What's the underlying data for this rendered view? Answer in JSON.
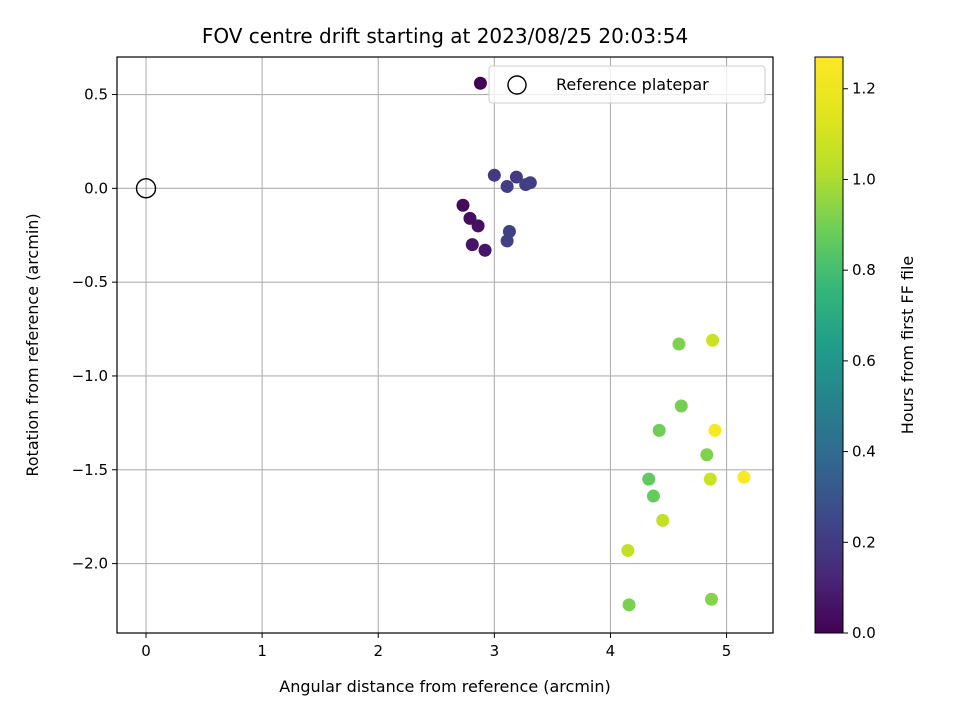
{
  "chart_data": {
    "type": "scatter",
    "title": "FOV centre drift starting at 2023/08/25 20:03:54",
    "xlabel": "Angular distance from reference (arcmin)",
    "ylabel": "Rotation from reference (arcmin)",
    "xlim": [
      -0.25,
      5.4
    ],
    "ylim": [
      -2.37,
      0.7
    ],
    "xticks": [
      0,
      1,
      2,
      3,
      4,
      5
    ],
    "yticks": [
      0.5,
      0.0,
      -0.5,
      -1.0,
      -1.5,
      -2.0
    ],
    "xtick_labels": [
      "0",
      "1",
      "2",
      "3",
      "4",
      "5"
    ],
    "ytick_labels": [
      "0.5",
      "0.0",
      "−0.5",
      "−1.0",
      "−1.5",
      "−2.0"
    ],
    "grid": true,
    "legend": {
      "position": "top-right",
      "entries": [
        "Reference platepar"
      ]
    },
    "reference_point": {
      "x": 0.0,
      "y": 0.0
    },
    "colorbar": {
      "label": "Hours from first FF file",
      "colormap": "viridis",
      "range": [
        0.0,
        1.27
      ],
      "ticks": [
        0.0,
        0.2,
        0.4,
        0.6,
        0.8,
        1.0,
        1.2
      ],
      "tick_labels": [
        "0.0",
        "0.2",
        "0.4",
        "0.6",
        "0.8",
        "1.0",
        "1.2"
      ]
    },
    "points": [
      {
        "x": 2.88,
        "y": 0.56,
        "c": 0.0
      },
      {
        "x": 2.73,
        "y": -0.09,
        "c": 0.03
      },
      {
        "x": 2.79,
        "y": -0.16,
        "c": 0.04
      },
      {
        "x": 2.86,
        "y": -0.2,
        "c": 0.05
      },
      {
        "x": 2.81,
        "y": -0.3,
        "c": 0.06
      },
      {
        "x": 2.92,
        "y": -0.33,
        "c": 0.07
      },
      {
        "x": 3.0,
        "y": 0.07,
        "c": 0.2
      },
      {
        "x": 3.11,
        "y": 0.01,
        "c": 0.21
      },
      {
        "x": 3.19,
        "y": 0.06,
        "c": 0.2
      },
      {
        "x": 3.27,
        "y": 0.02,
        "c": 0.21
      },
      {
        "x": 3.31,
        "y": 0.03,
        "c": 0.22
      },
      {
        "x": 3.13,
        "y": -0.23,
        "c": 0.22
      },
      {
        "x": 3.11,
        "y": -0.28,
        "c": 0.22
      },
      {
        "x": 4.59,
        "y": -0.83,
        "c": 0.92
      },
      {
        "x": 4.88,
        "y": -0.81,
        "c": 1.08
      },
      {
        "x": 4.61,
        "y": -1.16,
        "c": 0.9
      },
      {
        "x": 4.42,
        "y": -1.29,
        "c": 0.89
      },
      {
        "x": 4.9,
        "y": -1.29,
        "c": 1.25
      },
      {
        "x": 4.83,
        "y": -1.42,
        "c": 0.92
      },
      {
        "x": 5.15,
        "y": -1.54,
        "c": 1.26
      },
      {
        "x": 4.33,
        "y": -1.55,
        "c": 0.86
      },
      {
        "x": 4.86,
        "y": -1.55,
        "c": 1.08
      },
      {
        "x": 4.37,
        "y": -1.64,
        "c": 0.87
      },
      {
        "x": 4.45,
        "y": -1.77,
        "c": 1.05
      },
      {
        "x": 4.15,
        "y": -1.93,
        "c": 1.06
      },
      {
        "x": 4.16,
        "y": -2.22,
        "c": 0.91
      },
      {
        "x": 4.87,
        "y": -2.19,
        "c": 0.93
      }
    ]
  }
}
